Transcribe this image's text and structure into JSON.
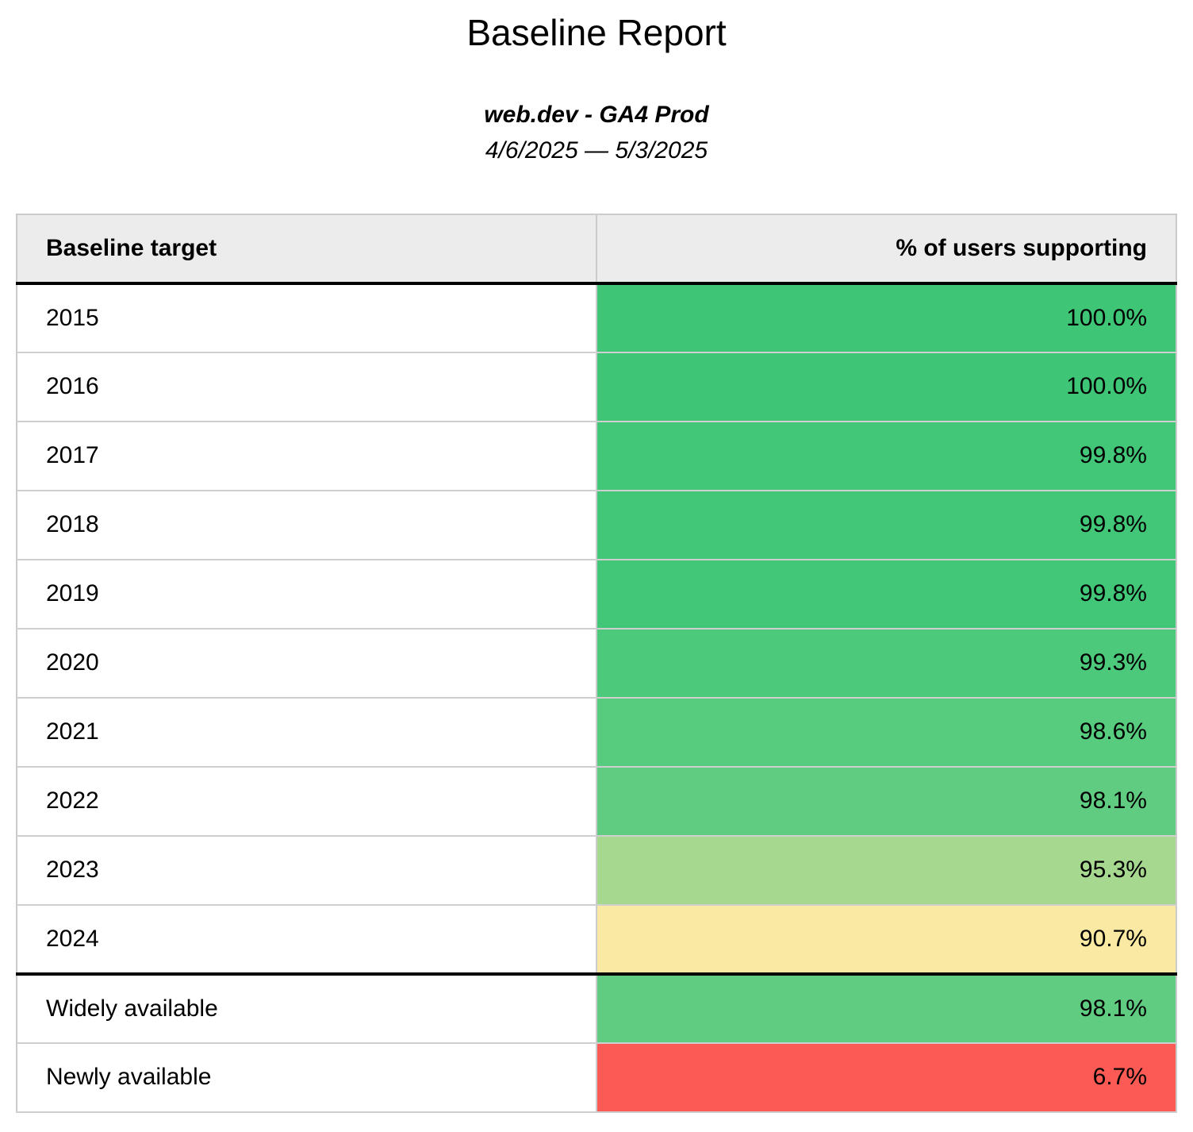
{
  "report": {
    "title": "Baseline Report",
    "subtitle": "web.dev - GA4 Prod",
    "date_range": "4/6/2025 — 5/3/2025"
  },
  "table": {
    "columns": {
      "label": "Baseline target",
      "value": "% of users supporting"
    },
    "rows": [
      {
        "label": "2015",
        "value": "100.0%",
        "color": "#3ec576"
      },
      {
        "label": "2016",
        "value": "100.0%",
        "color": "#3ec576"
      },
      {
        "label": "2017",
        "value": "99.8%",
        "color": "#42c778"
      },
      {
        "label": "2018",
        "value": "99.8%",
        "color": "#42c778"
      },
      {
        "label": "2019",
        "value": "99.8%",
        "color": "#42c778"
      },
      {
        "label": "2020",
        "value": "99.3%",
        "color": "#4cc97b"
      },
      {
        "label": "2021",
        "value": "98.6%",
        "color": "#57cb7e"
      },
      {
        "label": "2022",
        "value": "98.1%",
        "color": "#60cc81"
      },
      {
        "label": "2023",
        "value": "95.3%",
        "color": "#a6d890"
      },
      {
        "label": "2024",
        "value": "90.7%",
        "color": "#f9e9a2"
      },
      {
        "label": "Widely available",
        "value": "98.1%",
        "color": "#60cc81"
      },
      {
        "label": "Newly available",
        "value": "6.7%",
        "color": "#fc5a54"
      }
    ]
  },
  "chart_data": {
    "type": "table",
    "title": "Baseline Report",
    "subtitle": "web.dev - GA4 Prod",
    "date_range": "4/6/2025 — 5/3/2025",
    "columns": [
      "Baseline target",
      "% of users supporting"
    ],
    "categories": [
      "2015",
      "2016",
      "2017",
      "2018",
      "2019",
      "2020",
      "2021",
      "2022",
      "2023",
      "2024",
      "Widely available",
      "Newly available"
    ],
    "values": [
      100.0,
      100.0,
      99.8,
      99.8,
      99.8,
      99.3,
      98.6,
      98.1,
      95.3,
      90.7,
      98.1,
      6.7
    ],
    "value_unit": "%",
    "color_scale": {
      "description": "value-cell heatmap from red (low) through yellow to green (high)",
      "high_green": "#3ec576",
      "mid_yellow": "#f9e9a2",
      "low_red": "#fc5a54"
    },
    "header_background": "#ececec",
    "thick_divider_after_rows": [
      "header",
      "2024"
    ]
  }
}
